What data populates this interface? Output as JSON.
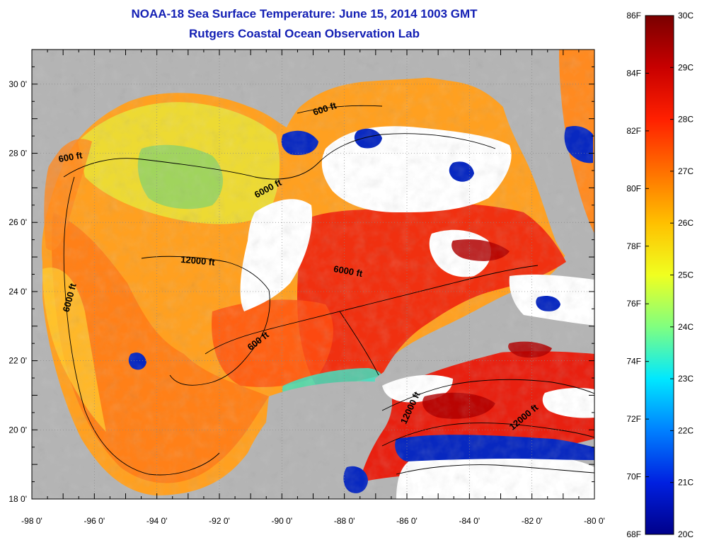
{
  "title": "NOAA-18 Sea Surface Temperature:  June 15, 2014 1003 GMT",
  "subtitle": "Rutgers Coastal Ocean Observation Lab",
  "map": {
    "lon_range": [
      -98,
      -80
    ],
    "lat_range": [
      18,
      31
    ],
    "lon_labels": [
      "-98 0'",
      "-96 0'",
      "-94 0'",
      "-92 0'",
      "-90 0'",
      "-88 0'",
      "-86 0'",
      "-84 0'",
      "-82 0'",
      "-80 0'"
    ],
    "lat_labels": [
      "18 0'",
      "20 0'",
      "22 0'",
      "24 0'",
      "26 0'",
      "28 0'",
      "30 0'"
    ],
    "land_color": "#b4b4b4",
    "cloud_color": "#ffffff",
    "contour_labels": [
      {
        "text": "600 ft",
        "lon": -96.75,
        "lat": 27.8,
        "angle": -10
      },
      {
        "text": "600 ft",
        "lon": -88.6,
        "lat": 29.2,
        "angle": -18
      },
      {
        "text": "6000 ft",
        "lon": -90.4,
        "lat": 26.9,
        "angle": -28
      },
      {
        "text": "12000 ft",
        "lon": -92.7,
        "lat": 24.8,
        "angle": 5
      },
      {
        "text": "6000 ft",
        "lon": -96.7,
        "lat": 23.8,
        "angle": -75
      },
      {
        "text": "6000 ft",
        "lon": -87.9,
        "lat": 24.5,
        "angle": 10
      },
      {
        "text": "600 ft",
        "lon": -90.7,
        "lat": 22.5,
        "angle": -38
      },
      {
        "text": "12000 ft",
        "lon": -85.8,
        "lat": 20.6,
        "angle": -65
      },
      {
        "text": "12000 ft",
        "lon": -82.2,
        "lat": 20.3,
        "angle": -40
      }
    ]
  },
  "colorbar": {
    "fahrenheit_labels": [
      "86F",
      "84F",
      "82F",
      "80F",
      "78F",
      "76F",
      "74F",
      "72F",
      "70F",
      "68F"
    ],
    "celsius_labels": [
      "30C",
      "29C",
      "28C",
      "27C",
      "26C",
      "25C",
      "24C",
      "23C",
      "22C",
      "21C",
      "20C"
    ],
    "gradient": [
      "#7a0000",
      "#c80000",
      "#ff2000",
      "#ff7000",
      "#ffc000",
      "#f0ff20",
      "#80ff80",
      "#00e8ff",
      "#0080ff",
      "#0020e0",
      "#00008a"
    ]
  }
}
